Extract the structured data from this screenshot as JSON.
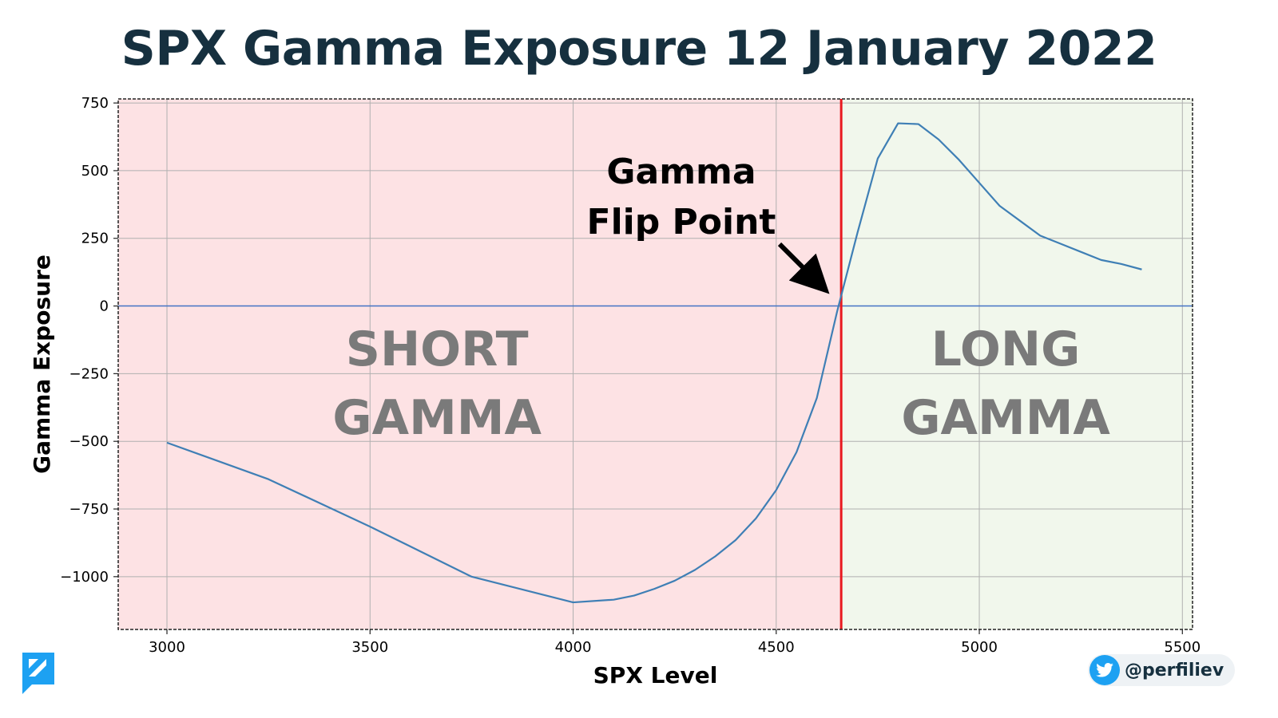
{
  "title": "SPX Gamma Exposure 12 January 2022",
  "branding": {
    "handle": "@perfiliev",
    "twitter_color": "#1da1f2",
    "logo_color": "#1da1f2"
  },
  "colors": {
    "short_region": "#fde2e4",
    "long_region": "#f1f7ec",
    "curve": "#3f7fb5",
    "zero_line": "#4472c4",
    "flip_line": "#e8191f",
    "region_text": "#7a7a7a"
  },
  "chart_data": {
    "type": "line",
    "title": "SPX Gamma Exposure 12 January 2022",
    "xlabel": "SPX Level",
    "ylabel": "Gamma Exposure",
    "xlim": [
      2880,
      5525
    ],
    "ylim": [
      -1195,
      765
    ],
    "xticks": [
      3000,
      3500,
      4000,
      4500,
      5000,
      5500
    ],
    "yticks": [
      750,
      500,
      250,
      0,
      -250,
      -500,
      -750,
      -1000
    ],
    "xtick_labels": [
      "3000",
      "3500",
      "4000",
      "4500",
      "5000",
      "5500"
    ],
    "ytick_labels": [
      "750",
      "500",
      "250",
      "0",
      "−250",
      "−500",
      "−750",
      "−1000"
    ],
    "grid": true,
    "series": [
      {
        "x": [
          3000,
          3250,
          3500,
          3750,
          4000,
          4100,
          4150,
          4200,
          4250,
          4300,
          4350,
          4400,
          4450,
          4500,
          4550,
          4600,
          4650,
          4700,
          4750,
          4800,
          4850,
          4900,
          4950,
          5000,
          5050,
          5100,
          5150,
          5200,
          5250,
          5300,
          5350,
          5400
        ],
        "y": [
          -505,
          -640,
          -815,
          -1000,
          -1095,
          -1085,
          -1070,
          -1045,
          -1015,
          -975,
          -925,
          -865,
          -785,
          -680,
          -540,
          -340,
          -20,
          270,
          545,
          675,
          672,
          615,
          540,
          455,
          370,
          315,
          260,
          230,
          200,
          170,
          155,
          135
        ]
      }
    ],
    "flip_point": 4660,
    "zero_line": 0,
    "regions": [
      {
        "label": [
          "SHORT",
          "GAMMA"
        ],
        "x_center": 3665,
        "side": "short"
      },
      {
        "label": [
          "LONG",
          "GAMMA"
        ],
        "x_center": 5065,
        "side": "long"
      }
    ],
    "annotation": {
      "lines": [
        "Gamma",
        "Flip Point"
      ]
    }
  }
}
